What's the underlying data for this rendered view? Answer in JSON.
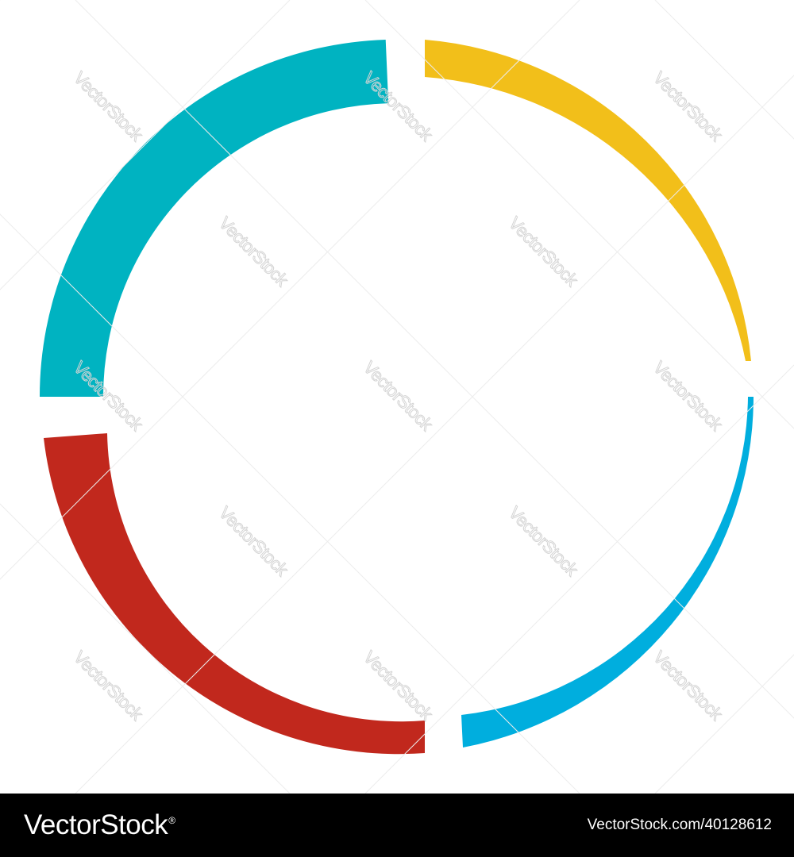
{
  "watermark": {
    "text": "VectorStock",
    "color": "#d4d4d4"
  },
  "ring": {
    "segments": [
      {
        "name": "teal",
        "color": "#00b3c1",
        "shape": "thick-outer-arc"
      },
      {
        "name": "yellow",
        "color": "#f2bf1a",
        "shape": "tapered-arc"
      },
      {
        "name": "blue",
        "color": "#00aede",
        "shape": "tapered-arc"
      },
      {
        "name": "red",
        "color": "#c1281d",
        "shape": "thick-outer-arc"
      }
    ]
  },
  "footer": {
    "brand": "VectorStock",
    "registered_mark": "®",
    "image_ref": "VectorStock.com/40128612",
    "background": "#000000",
    "text_color": "#ffffff"
  }
}
